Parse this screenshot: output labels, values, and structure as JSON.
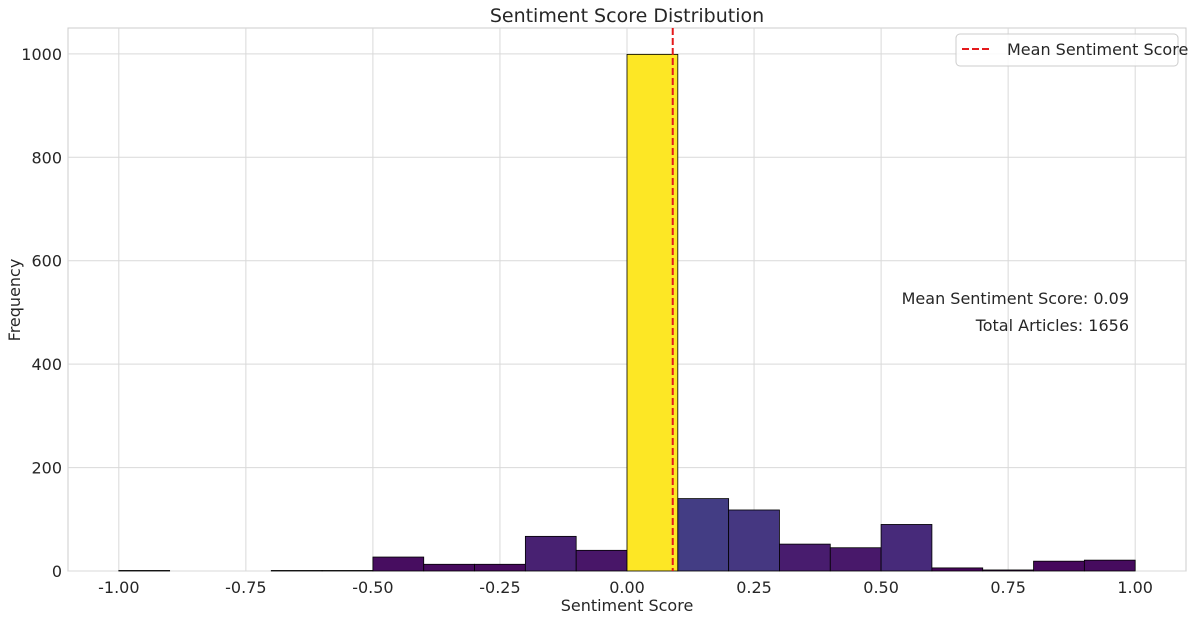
{
  "chart_data": {
    "type": "bar",
    "title": "Sentiment Score Distribution",
    "xlabel": "Sentiment Score",
    "ylabel": "Frequency",
    "xlim": [
      -1.1,
      1.1
    ],
    "ylim": [
      0,
      1050
    ],
    "x_ticks": [
      "-1.00",
      "-0.75",
      "-0.50",
      "-0.25",
      "0.00",
      "0.25",
      "0.50",
      "0.75",
      "1.00"
    ],
    "y_ticks": [
      "0",
      "200",
      "400",
      "600",
      "800",
      "1000"
    ],
    "grid": true,
    "bins": [
      {
        "start": -1.0,
        "end": -0.9,
        "count": 1,
        "color": "#440154"
      },
      {
        "start": -0.9,
        "end": -0.8,
        "count": 0,
        "color": "#440154"
      },
      {
        "start": -0.8,
        "end": -0.7,
        "count": 0,
        "color": "#440154"
      },
      {
        "start": -0.7,
        "end": -0.6,
        "count": 1,
        "color": "#440154"
      },
      {
        "start": -0.6,
        "end": -0.5,
        "count": 1,
        "color": "#440154"
      },
      {
        "start": -0.5,
        "end": -0.4,
        "count": 27,
        "color": "#470d60"
      },
      {
        "start": -0.4,
        "end": -0.3,
        "count": 13,
        "color": "#460a5d"
      },
      {
        "start": -0.3,
        "end": -0.2,
        "count": 13,
        "color": "#460a5d"
      },
      {
        "start": -0.2,
        "end": -0.1,
        "count": 67,
        "color": "#482172"
      },
      {
        "start": -0.1,
        "end": 0.0,
        "count": 40,
        "color": "#481668"
      },
      {
        "start": 0.0,
        "end": 0.1,
        "count": 999,
        "color": "#fde725"
      },
      {
        "start": 0.1,
        "end": 0.2,
        "count": 140,
        "color": "#433d84"
      },
      {
        "start": 0.2,
        "end": 0.3,
        "count": 118,
        "color": "#453781"
      },
      {
        "start": 0.3,
        "end": 0.4,
        "count": 52,
        "color": "#481c6e"
      },
      {
        "start": 0.4,
        "end": 0.5,
        "count": 45,
        "color": "#48186a"
      },
      {
        "start": 0.5,
        "end": 0.6,
        "count": 90,
        "color": "#472a7a"
      },
      {
        "start": 0.6,
        "end": 0.7,
        "count": 6,
        "color": "#450559"
      },
      {
        "start": 0.7,
        "end": 0.8,
        "count": 2,
        "color": "#440154"
      },
      {
        "start": 0.8,
        "end": 0.9,
        "count": 19,
        "color": "#46085c"
      },
      {
        "start": 0.9,
        "end": 1.0,
        "count": 21,
        "color": "#460b5e"
      }
    ],
    "mean_line": {
      "value": 0.09,
      "label": "Mean Sentiment Score",
      "color": "#e41a1c"
    },
    "annotations": [
      "Mean Sentiment Score: 0.09",
      "Total Articles: 1656"
    ],
    "legend_placement": "top-right"
  }
}
